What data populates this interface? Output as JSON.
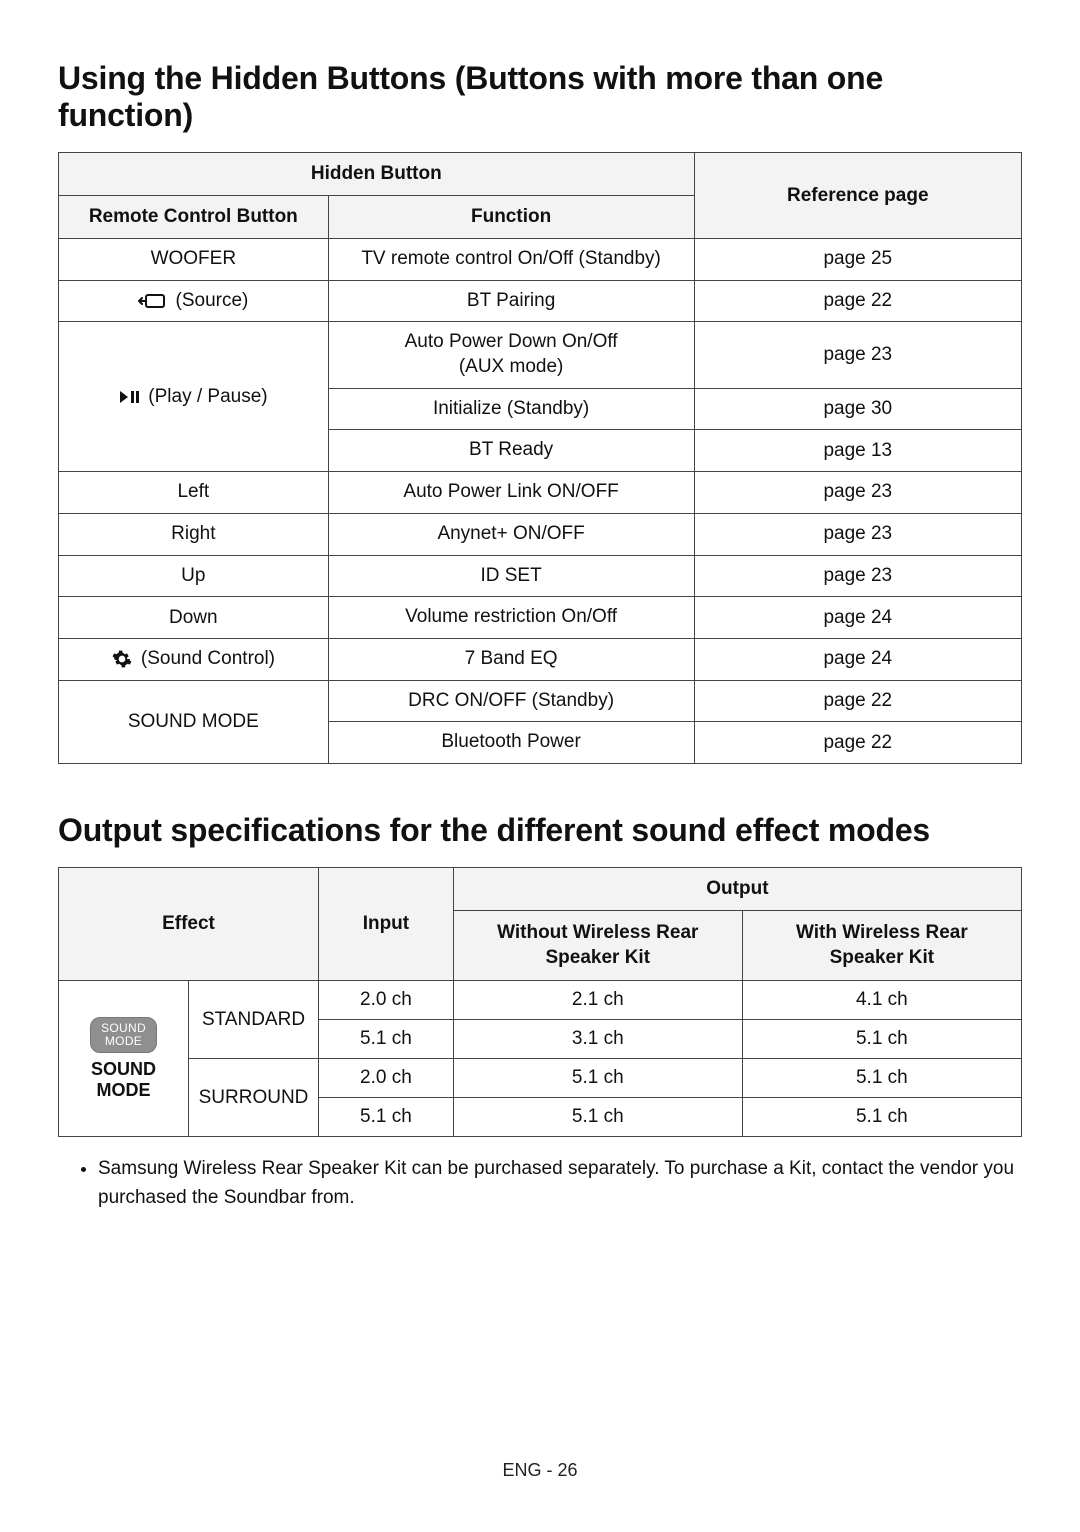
{
  "section1": {
    "title": "Using the Hidden Buttons (Buttons with more than one function)",
    "headers": {
      "hidden_button": "Hidden Button",
      "remote_control_button": "Remote Control Button",
      "function": "Function",
      "reference_page": "Reference page"
    },
    "rows": [
      {
        "button": "WOOFER",
        "button_icon": null,
        "functions": [
          {
            "fn": "TV remote control On/Off (Standby)",
            "ref": "page 25"
          }
        ]
      },
      {
        "button": "(Source)",
        "button_icon": "source",
        "functions": [
          {
            "fn": "BT Pairing",
            "ref": "page 22"
          }
        ]
      },
      {
        "button": "(Play / Pause)",
        "button_icon": "playpause",
        "functions": [
          {
            "fn": "Auto Power Down On/Off\n(AUX mode)",
            "ref": "page 23"
          },
          {
            "fn": "Initialize (Standby)",
            "ref": "page 30"
          },
          {
            "fn": "BT Ready",
            "ref": "page 13"
          }
        ]
      },
      {
        "button": "Left",
        "button_icon": null,
        "functions": [
          {
            "fn": "Auto Power Link ON/OFF",
            "ref": "page 23"
          }
        ]
      },
      {
        "button": "Right",
        "button_icon": null,
        "functions": [
          {
            "fn": "Anynet+ ON/OFF",
            "ref": "page 23"
          }
        ]
      },
      {
        "button": "Up",
        "button_icon": null,
        "functions": [
          {
            "fn": "ID SET",
            "ref": "page 23"
          }
        ]
      },
      {
        "button": "Down",
        "button_icon": null,
        "functions": [
          {
            "fn": "Volume restriction On/Off",
            "ref": "page 24"
          }
        ]
      },
      {
        "button": "(Sound Control)",
        "button_icon": "gear",
        "functions": [
          {
            "fn": "7 Band EQ",
            "ref": "page 24"
          }
        ]
      },
      {
        "button": "SOUND MODE",
        "button_icon": null,
        "functions": [
          {
            "fn": "DRC ON/OFF (Standby)",
            "ref": "page 22"
          },
          {
            "fn": "Bluetooth Power",
            "ref": "page 22"
          }
        ]
      }
    ]
  },
  "section2": {
    "title": "Output specifications for the different sound effect modes",
    "headers": {
      "effect": "Effect",
      "input": "Input",
      "output": "Output",
      "without": "Without Wireless Rear\nSpeaker Kit",
      "with": "With Wireless Rear\nSpeaker Kit"
    },
    "effect_button_line1": "SOUND",
    "effect_button_line2": "MODE",
    "effect_label": "SOUND MODE",
    "modes": [
      {
        "name": "STANDARD",
        "rows": [
          {
            "input": "2.0 ch",
            "without": "2.1 ch",
            "with": "4.1 ch"
          },
          {
            "input": "5.1 ch",
            "without": "3.1 ch",
            "with": "5.1 ch"
          }
        ]
      },
      {
        "name": "SURROUND",
        "rows": [
          {
            "input": "2.0 ch",
            "without": "5.1 ch",
            "with": "5.1 ch"
          },
          {
            "input": "5.1 ch",
            "without": "5.1 ch",
            "with": "5.1 ch"
          }
        ]
      }
    ],
    "note": "Samsung Wireless Rear Speaker Kit can be purchased separately. To purchase a Kit, contact the vendor you purchased the Soundbar from."
  },
  "footer": "ENG - 26"
}
